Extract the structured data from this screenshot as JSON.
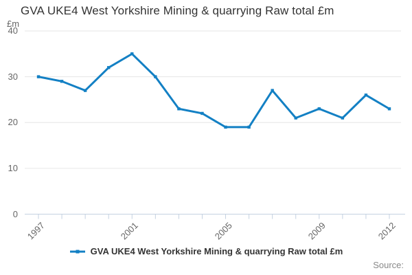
{
  "title": "GVA UKE4 West Yorkshire Mining & quarrying Raw total £m",
  "y_axis_unit": "£m",
  "source_label": "Source:",
  "legend": {
    "label": "GVA UKE4 West Yorkshire Mining & quarrying Raw total £m"
  },
  "colors": {
    "line": "#1380c4",
    "grid": "#e6e6e6",
    "axis": "#c4d1e0",
    "tick_text": "#666666",
    "title_text": "#333333",
    "source_text": "#888888"
  },
  "chart_data": {
    "type": "line",
    "x": [
      1997,
      1998,
      1999,
      2000,
      2001,
      2002,
      2003,
      2004,
      2005,
      2006,
      2007,
      2008,
      2009,
      2010,
      2011,
      2012
    ],
    "series": [
      {
        "name": "GVA UKE4 West Yorkshire Mining & quarrying Raw total £m",
        "values": [
          30,
          29,
          27,
          32,
          35,
          30,
          23,
          22,
          19,
          19,
          27,
          21,
          23,
          21,
          26,
          23
        ]
      }
    ],
    "title": "GVA UKE4 West Yorkshire Mining & quarrying Raw total £m",
    "xlabel": "",
    "ylabel": "£m",
    "ylim": [
      0,
      40
    ],
    "yticks": [
      0,
      10,
      20,
      30,
      40
    ],
    "xtick_labels": [
      "1997",
      "2001",
      "2005",
      "2009",
      "2012"
    ],
    "xtick_indices": [
      0,
      4,
      8,
      12,
      15
    ],
    "grid": "horizontal",
    "legend_position": "bottom"
  }
}
